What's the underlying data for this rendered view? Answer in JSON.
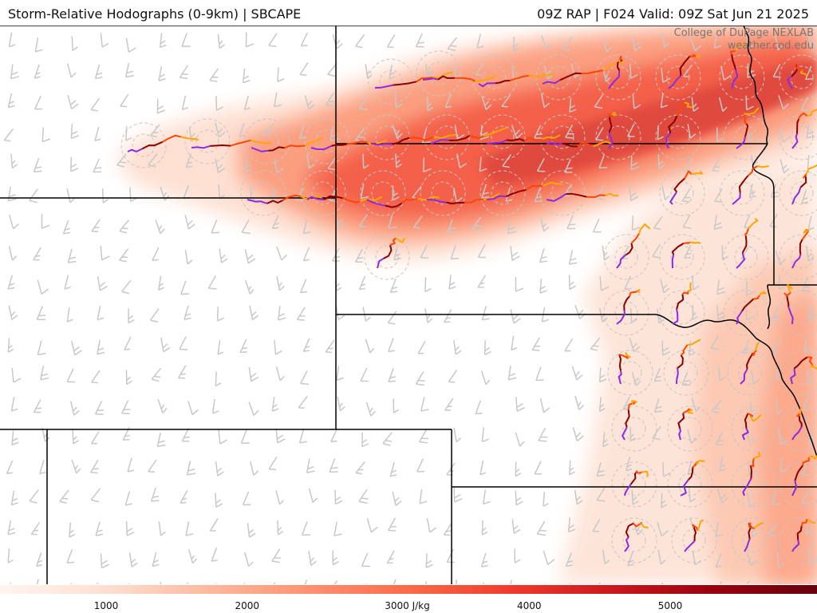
{
  "header": {
    "title_left": "Storm-Relative Hodographs (0-9km) | SBCAPE",
    "title_right": "09Z RAP | F024 Valid: 09Z Sat Jun 21 2025"
  },
  "credit": {
    "line1": "College of DuPage NEXLAB",
    "line2": "weather.cod.edu"
  },
  "colorbar": {
    "unit": "J/kg",
    "min": 0,
    "max": 6000,
    "tick_labels": [
      "1000",
      "2000",
      "3000 J/kg",
      "4000",
      "5000"
    ],
    "tick_values": [
      1000,
      2000,
      3000,
      4000,
      5000
    ],
    "colors": [
      "#fff5f0",
      "#fee0d2",
      "#fcbba1",
      "#fc9272",
      "#fb6a4a",
      "#ef3b2c",
      "#cb181d",
      "#99000d",
      "#67000d"
    ]
  },
  "legend_colors": {
    "hodo_0_3km": "#8a2be2",
    "hodo_3_6km": "#8b0000",
    "hodo_6_8km": "#ff4500",
    "hodo_8_9km": "#ffa500",
    "barb": "#c8c8c8",
    "state_border": "#000000"
  }
}
